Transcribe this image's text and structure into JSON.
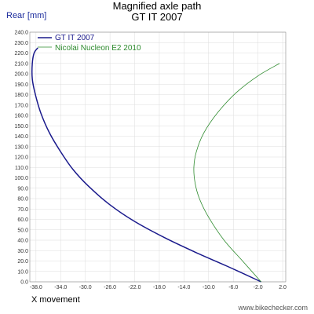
{
  "chart_data": {
    "type": "line",
    "title": "Magnified axle path",
    "subtitle": "GT IT 2007",
    "xlabel": "X movement",
    "ylabel": "Rear [mm]",
    "xlim": [
      -39,
      2.5
    ],
    "ylim": [
      0,
      240
    ],
    "x_ticks": [
      "-38.0",
      "-34.0",
      "-30.0",
      "-26.0",
      "-22.0",
      "-18.0",
      "-14.0",
      "-10.0",
      "-6.0",
      "-2.0",
      "2.0"
    ],
    "y_ticks": [
      "0.0",
      "10.0",
      "20.0",
      "30.0",
      "40.0",
      "50.0",
      "60.0",
      "70.0",
      "80.0",
      "90.0",
      "100.0",
      "110.0",
      "120.0",
      "130.0",
      "140.0",
      "150.0",
      "160.0",
      "170.0",
      "180.0",
      "190.0",
      "200.0",
      "210.0",
      "220.0",
      "230.0",
      "240.0"
    ],
    "grid": true,
    "legend_position": "top-left",
    "watermark": "www.bikechecker.com",
    "series": [
      {
        "name": "GT IT 2007",
        "color": "#1a1a8c",
        "x": [
          -1.5,
          -7.0,
          -12.0,
          -17.0,
          -22.0,
          -26.0,
          -29.5,
          -32.0,
          -34.0,
          -35.8,
          -37.2,
          -38.1,
          -38.6,
          -38.6,
          -38.3,
          -37.7
        ],
        "y": [
          0,
          15,
          28,
          42,
          58,
          74,
          92,
          108,
          125,
          143,
          162,
          180,
          195,
          210,
          220,
          225
        ]
      },
      {
        "name": "Nicolai Nucleon E2 2010",
        "color": "#2e8b2e",
        "x": [
          -1.5,
          -4.5,
          -7.5,
          -10.0,
          -11.5,
          -12.2,
          -12.4,
          -12.0,
          -10.8,
          -8.5,
          -5.5,
          -2.0,
          1.5
        ],
        "y": [
          0,
          20,
          40,
          62,
          80,
          95,
          110,
          125,
          143,
          163,
          182,
          198,
          210
        ]
      }
    ]
  }
}
